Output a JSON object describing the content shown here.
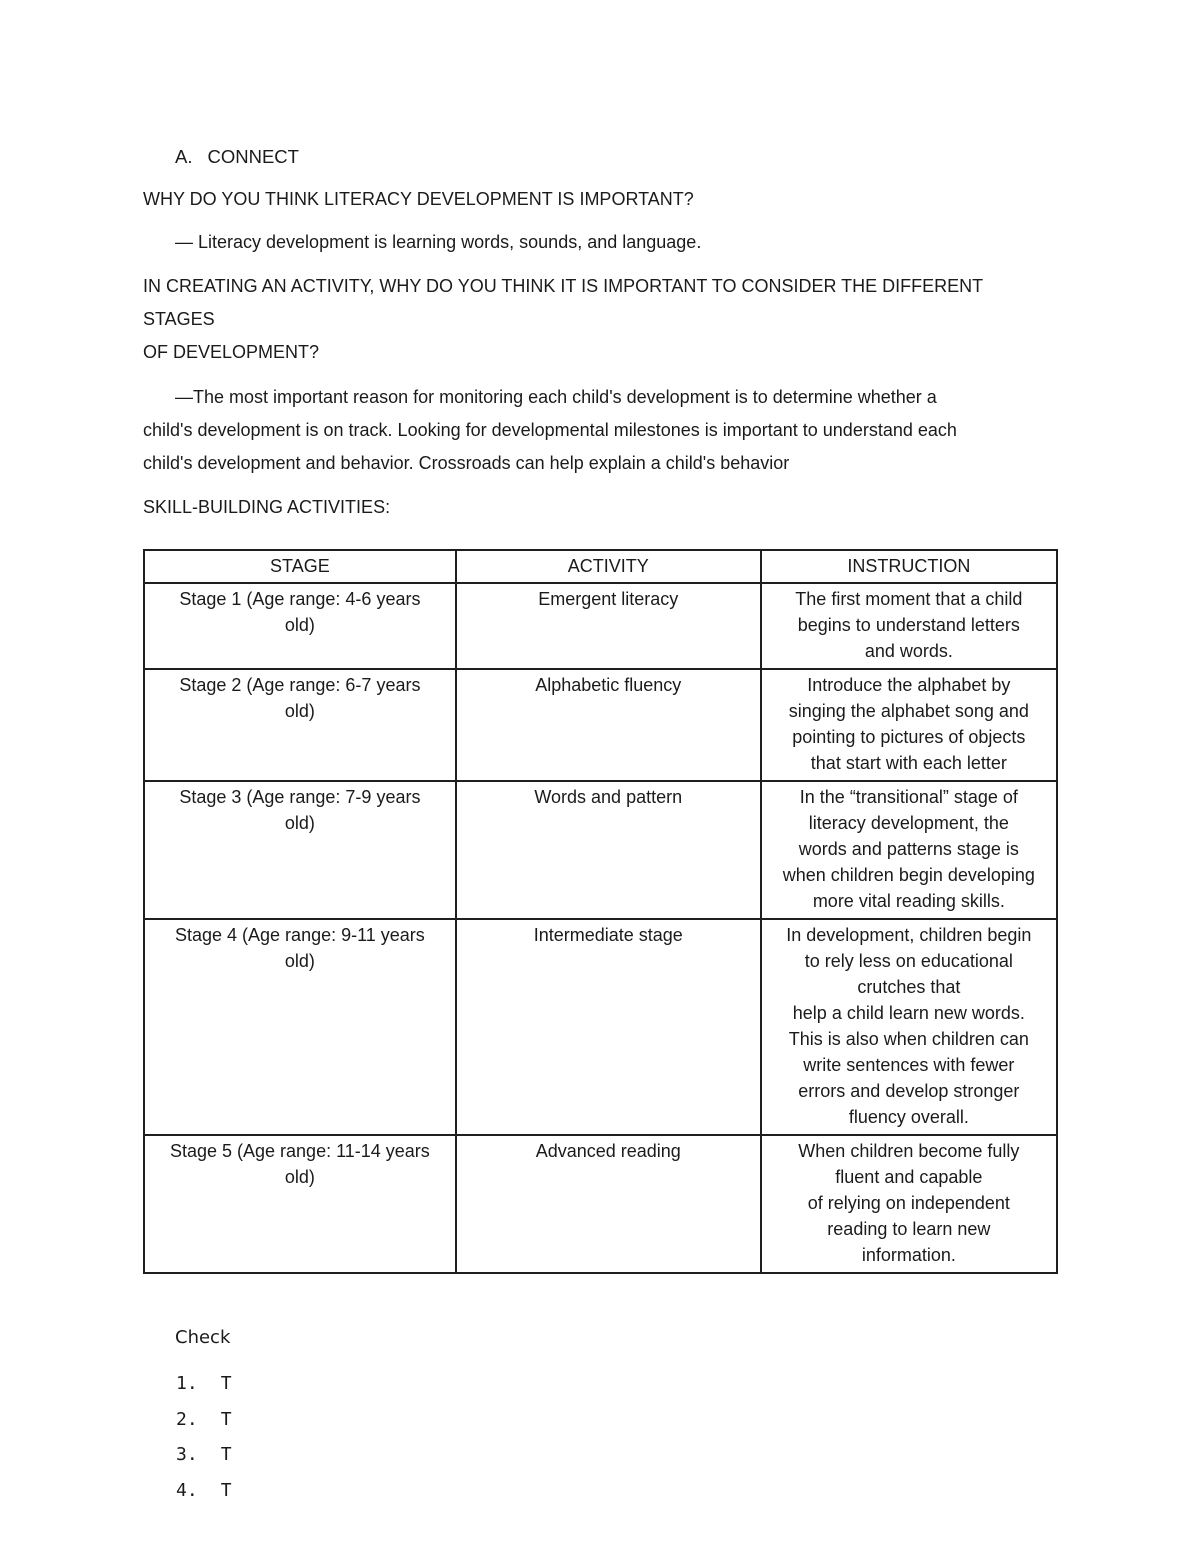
{
  "document": {
    "connect": {
      "marker": "A.",
      "title": "CONNECT"
    },
    "question1": "WHY DO YOU THINK LITERACY DEVELOPMENT IS IMPORTANT?",
    "answer1": "— Literacy development is learning words, sounds, and language.",
    "question2": "IN CREATING AN ACTIVITY, WHY DO YOU THINK IT IS IMPORTANT TO CONSIDER THE DIFFERENT STAGES\nOF DEVELOPMENT?",
    "answer2": "—The most important reason for monitoring each child's development is to determine whether a\nchild's development is on track. Looking for developmental milestones is important to understand each\nchild's development and behavior. Crossroads can help explain a child's behavior",
    "skill_heading": "SKILL-BUILDING ACTIVITIES:"
  },
  "table": {
    "headers": [
      "STAGE",
      "ACTIVITY",
      "INSTRUCTION"
    ],
    "rows": [
      {
        "stage": "Stage 1 (Age range: 4-6 years\nold)",
        "activity": "Emergent literacy",
        "instruction": "The first moment that a child\nbegins to understand letters\nand words."
      },
      {
        "stage": "Stage 2 (Age range: 6-7 years\nold)",
        "activity": "Alphabetic fluency",
        "instruction": "Introduce the alphabet by\nsinging the alphabet song and\npointing to pictures of objects\nthat start with each letter"
      },
      {
        "stage": "Stage 3 (Age range: 7-9 years\nold)",
        "activity": "Words and pattern",
        "instruction": "In the “transitional” stage of\nliteracy development, the\nwords and patterns stage is\nwhen children begin developing\nmore vital reading skills."
      },
      {
        "stage": "Stage 4 (Age range: 9-11 years\nold)",
        "activity": "Intermediate stage",
        "instruction": "In development, children begin\nto rely less on educational\ncrutches that\nhelp a child learn new words.\nThis is also when children can\nwrite sentences with fewer\nerrors and develop stronger\nfluency overall."
      },
      {
        "stage": "Stage 5 (Age range: 11-14 years\nold)",
        "activity": "Advanced reading",
        "instruction": "When children become fully\nfluent and capable\nof relying on independent\nreading to learn new\ninformation."
      }
    ]
  },
  "check": {
    "title": "Check",
    "items": [
      {
        "num": "1.",
        "value": "T"
      },
      {
        "num": "2.",
        "value": "T"
      },
      {
        "num": "3.",
        "value": "T"
      },
      {
        "num": "4.",
        "value": "T"
      }
    ]
  }
}
